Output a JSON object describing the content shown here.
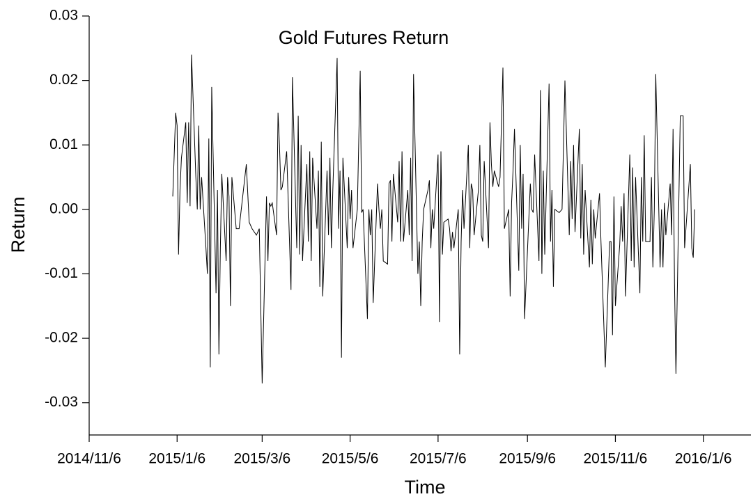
{
  "chart_data": {
    "type": "line",
    "title": "Gold Futures Return",
    "xlabel": "Time",
    "ylabel": "Return",
    "color": "#000000",
    "xlim": [
      "2014/11/6",
      "2016/2/8"
    ],
    "xticks": [
      "2014/11/6",
      "2015/1/6",
      "2015/3/6",
      "2015/5/6",
      "2015/7/6",
      "2015/9/6",
      "2015/11/6",
      "2016/1/6"
    ],
    "ylim": [
      -0.035,
      0.03
    ],
    "yticks": [
      -0.03,
      -0.02,
      -0.01,
      {
        "value": 0,
        "label": "0.00"
      },
      0.01,
      0.02,
      0.03
    ],
    "x": [
      "2015/1/3",
      "2015/1/5",
      "2015/1/6",
      "2015/1/7",
      "2015/1/8",
      "2015/1/9",
      "2015/1/12",
      "2015/1/13",
      "2015/1/14",
      "2015/1/15",
      "2015/1/16",
      "2015/1/19",
      "2015/1/20",
      "2015/1/21",
      "2015/1/22",
      "2015/1/23",
      "2015/1/26",
      "2015/1/27",
      "2015/1/28",
      "2015/1/29",
      "2015/1/30",
      "2015/2/2",
      "2015/2/3",
      "2015/2/4",
      "2015/2/5",
      "2015/2/6",
      "2015/2/9",
      "2015/2/10",
      "2015/2/11",
      "2015/2/12",
      "2015/2/13",
      "2015/2/16",
      "2015/2/18",
      "2015/2/23",
      "2015/2/25",
      "2015/2/27",
      "2015/3/2",
      "2015/3/4",
      "2015/3/6",
      "2015/3/9",
      "2015/3/10",
      "2015/3/11",
      "2015/3/12",
      "2015/3/13",
      "2015/3/16",
      "2015/3/17",
      "2015/3/18",
      "2015/3/19",
      "2015/3/20",
      "2015/3/23",
      "2015/3/26",
      "2015/3/27",
      "2015/3/30",
      "2015/3/31",
      "2015/4/1",
      "2015/4/2",
      "2015/4/3",
      "2015/4/6",
      "2015/4/7",
      "2015/4/8",
      "2015/4/9",
      "2015/4/10",
      "2015/4/13",
      "2015/4/14",
      "2015/4/15",
      "2015/4/16",
      "2015/4/17",
      "2015/4/20",
      "2015/4/21",
      "2015/4/22",
      "2015/4/23",
      "2015/4/24",
      "2015/4/27",
      "2015/4/28",
      "2015/4/29",
      "2015/4/30",
      "2015/5/1",
      "2015/5/4",
      "2015/5/5",
      "2015/5/6",
      "2015/5/7",
      "2015/5/8",
      "2015/5/11",
      "2015/5/13",
      "2015/5/14",
      "2015/5/15",
      "2015/5/18",
      "2015/5/19",
      "2015/5/20",
      "2015/5/21",
      "2015/5/22",
      "2015/5/25",
      "2015/5/26",
      "2015/5/27",
      "2015/5/28",
      "2015/5/29",
      "2015/6/1",
      "2015/6/2",
      "2015/6/3",
      "2015/6/4",
      "2015/6/5",
      "2015/6/8",
      "2015/6/9",
      "2015/6/10",
      "2015/6/11",
      "2015/6/12",
      "2015/6/15",
      "2015/6/16",
      "2015/6/17",
      "2015/6/18",
      "2015/6/19",
      "2015/6/22",
      "2015/6/23",
      "2015/6/24",
      "2015/6/25",
      "2015/6/26",
      "2015/6/29",
      "2015/6/30",
      "2015/7/1",
      "2015/7/2",
      "2015/7/3",
      "2015/7/6",
      "2015/7/7",
      "2015/7/8",
      "2015/7/9",
      "2015/7/10",
      "2015/7/13",
      "2015/7/14",
      "2015/7/15",
      "2015/7/16",
      "2015/7/17",
      "2015/7/20",
      "2015/7/21",
      "2015/7/22",
      "2015/7/23",
      "2015/7/24",
      "2015/7/27",
      "2015/7/28",
      "2015/7/29",
      "2015/7/30",
      "2015/7/31",
      "2015/8/3",
      "2015/8/4",
      "2015/8/5",
      "2015/8/6",
      "2015/8/7",
      "2015/8/10",
      "2015/8/11",
      "2015/8/12",
      "2015/8/13",
      "2015/8/14",
      "2015/8/17",
      "2015/8/18",
      "2015/8/20",
      "2015/8/21",
      "2015/8/24",
      "2015/8/25",
      "2015/8/26",
      "2015/8/27",
      "2015/8/28",
      "2015/8/31",
      "2015/9/1",
      "2015/9/2",
      "2015/9/3",
      "2015/9/4",
      "2015/9/8",
      "2015/9/9",
      "2015/9/10",
      "2015/9/11",
      "2015/9/14",
      "2015/9/15",
      "2015/9/16",
      "2015/9/17",
      "2015/9/18",
      "2015/9/21",
      "2015/9/22",
      "2015/9/23",
      "2015/9/24",
      "2015/9/25",
      "2015/9/28",
      "2015/9/30",
      "2015/10/2",
      "2015/10/5",
      "2015/10/6",
      "2015/10/7",
      "2015/10/8",
      "2015/10/9",
      "2015/10/12",
      "2015/10/13",
      "2015/10/14",
      "2015/10/15",
      "2015/10/16",
      "2015/10/19",
      "2015/10/20",
      "2015/10/21",
      "2015/10/22",
      "2015/10/23",
      "2015/10/26",
      "2015/10/27",
      "2015/10/30",
      "2015/11/2",
      "2015/11/3",
      "2015/11/4",
      "2015/11/5",
      "2015/11/6",
      "2015/11/9",
      "2015/11/10",
      "2015/11/11",
      "2015/11/12",
      "2015/11/13",
      "2015/11/16",
      "2015/11/17",
      "2015/11/18",
      "2015/11/19",
      "2015/11/20",
      "2015/11/23",
      "2015/11/24",
      "2015/11/25",
      "2015/11/26",
      "2015/11/27",
      "2015/11/30",
      "2015/12/1",
      "2015/12/2",
      "2015/12/3",
      "2015/12/4",
      "2015/12/7",
      "2015/12/8",
      "2015/12/9",
      "2015/12/10",
      "2015/12/11",
      "2015/12/14",
      "2015/12/15",
      "2015/12/16",
      "2015/12/17",
      "2015/12/18",
      "2015/12/21",
      "2015/12/22",
      "2015/12/23",
      "2015/12/24",
      "2015/12/28",
      "2015/12/29",
      "2015/12/30",
      "2015/12/31"
    ],
    "values": [
      0.002,
      0.015,
      0.013,
      -0.007,
      0.003,
      0.008,
      0.0135,
      0.001,
      0.0135,
      0.0005,
      0.024,
      0.005,
      0.0,
      0.013,
      0.0,
      0.005,
      -0.006,
      -0.01,
      0.011,
      -0.0245,
      0.019,
      -0.013,
      0.003,
      -0.0225,
      -0.006,
      0.0055,
      -0.008,
      0.005,
      0.002,
      -0.015,
      0.005,
      -0.003,
      -0.003,
      0.007,
      -0.002,
      -0.003,
      -0.004,
      -0.003,
      -0.027,
      0.002,
      -0.008,
      0.001,
      0.0005,
      0.001,
      -0.004,
      0.015,
      0.01,
      0.003,
      0.0035,
      0.009,
      -0.0125,
      0.0205,
      -0.006,
      0.0145,
      -0.007,
      0.01,
      -0.008,
      0.007,
      -0.005,
      0.009,
      -0.008,
      0.008,
      -0.003,
      0.006,
      -0.012,
      0.0105,
      -0.0135,
      0.006,
      -0.004,
      0.008,
      -0.006,
      0.003,
      0.0235,
      -0.003,
      0.006,
      -0.023,
      0.008,
      -0.006,
      0.005,
      -0.0015,
      0.003,
      -0.006,
      0.0,
      0.0215,
      -0.0005,
      0.0,
      -0.017,
      0.0,
      -0.004,
      0.0,
      -0.0145,
      0.004,
      0.0,
      -0.003,
      0.0,
      -0.008,
      -0.0085,
      0.004,
      0.0045,
      -0.005,
      0.0055,
      -0.002,
      0.0075,
      -0.005,
      0.009,
      -0.005,
      0.003,
      -0.004,
      0.008,
      -0.008,
      0.021,
      -0.01,
      -0.005,
      -0.015,
      -0.005,
      0.0,
      0.003,
      0.0045,
      -0.006,
      0.0,
      -0.003,
      0.0085,
      -0.0175,
      0.009,
      -0.007,
      -0.002,
      -0.0015,
      -0.003,
      -0.0065,
      -0.0035,
      -0.006,
      0.0,
      -0.0225,
      -0.005,
      0.003,
      -0.003,
      0.01,
      -0.006,
      0.004,
      0.003,
      -0.004,
      0.003,
      0.01,
      -0.004,
      -0.005,
      0.0075,
      -0.006,
      0.0135,
      0.007,
      0.0035,
      0.006,
      0.0035,
      0.005,
      0.022,
      -0.003,
      0.0,
      -0.0135,
      0.001,
      0.006,
      0.0125,
      -0.0095,
      0.01,
      -0.003,
      0.0055,
      -0.017,
      0.004,
      0.0,
      -0.0005,
      0.0085,
      -0.008,
      0.0185,
      -0.01,
      0.006,
      -0.007,
      0.0195,
      -0.005,
      0.003,
      -0.012,
      0.0,
      -0.0005,
      0.0,
      0.02,
      -0.004,
      0.0075,
      -0.0015,
      0.01,
      -0.0035,
      0.0125,
      -0.0045,
      0.007,
      -0.007,
      0.003,
      -0.009,
      0.0015,
      -0.0085,
      0.0,
      -0.0045,
      0.0025,
      -0.005,
      -0.0245,
      -0.005,
      -0.005,
      -0.0195,
      0.002,
      -0.015,
      -0.0055,
      0.0005,
      -0.005,
      0.0025,
      -0.0135,
      0.0085,
      -0.008,
      0.0065,
      -0.009,
      0.005,
      -0.013,
      0.005,
      -0.005,
      0.0115,
      -0.005,
      -0.005,
      0.005,
      -0.009,
      0.0,
      0.021,
      -0.009,
      0.0,
      -0.009,
      0.001,
      -0.004,
      0.004,
      -0.004,
      0.0125,
      -0.0115,
      -0.0255,
      0.0145,
      0.0145,
      0.0145,
      -0.006,
      0.007,
      -0.006,
      -0.0075,
      0.0
    ]
  }
}
